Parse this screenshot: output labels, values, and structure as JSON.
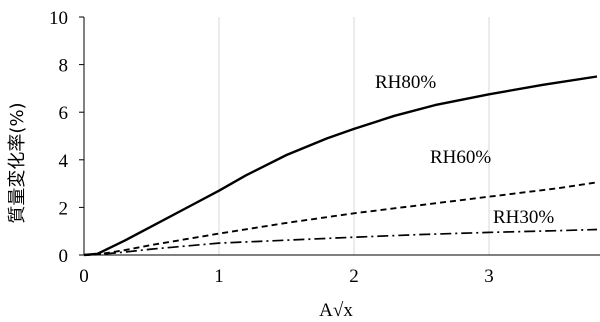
{
  "chart_data": {
    "type": "line",
    "xlabel": "A√x",
    "ylabel": "質量変化率(%)",
    "xlim": [
      0,
      3.8
    ],
    "ylim": [
      0,
      10
    ],
    "x_ticks": [
      "0",
      "1",
      "2",
      "3"
    ],
    "y_ticks": [
      "0",
      "2",
      "4",
      "6",
      "8",
      "10"
    ],
    "grid": "vertical",
    "series": [
      {
        "name": "RH80%",
        "style": "solid",
        "points": [
          [
            0,
            0
          ],
          [
            0.1,
            0.05
          ],
          [
            0.3,
            0.6
          ],
          [
            0.5,
            1.2
          ],
          [
            0.8,
            2.1
          ],
          [
            1.0,
            2.7
          ],
          [
            1.2,
            3.35
          ],
          [
            1.5,
            4.2
          ],
          [
            1.8,
            4.9
          ],
          [
            2.0,
            5.3
          ],
          [
            2.3,
            5.85
          ],
          [
            2.6,
            6.3
          ],
          [
            3.0,
            6.75
          ],
          [
            3.4,
            7.15
          ],
          [
            3.8,
            7.5
          ]
        ]
      },
      {
        "name": "RH60%",
        "style": "dashed",
        "points": [
          [
            0,
            0
          ],
          [
            0.1,
            0.02
          ],
          [
            0.3,
            0.2
          ],
          [
            0.5,
            0.42
          ],
          [
            1.0,
            0.9
          ],
          [
            1.5,
            1.35
          ],
          [
            2.0,
            1.75
          ],
          [
            2.5,
            2.1
          ],
          [
            3.0,
            2.45
          ],
          [
            3.5,
            2.8
          ],
          [
            3.8,
            3.05
          ]
        ]
      },
      {
        "name": "RH30%",
        "style": "dashdot",
        "points": [
          [
            0,
            0
          ],
          [
            0.1,
            0.02
          ],
          [
            0.3,
            0.12
          ],
          [
            0.5,
            0.25
          ],
          [
            1.0,
            0.5
          ],
          [
            1.5,
            0.62
          ],
          [
            2.0,
            0.75
          ],
          [
            2.5,
            0.86
          ],
          [
            3.0,
            0.95
          ],
          [
            3.5,
            1.02
          ],
          [
            3.8,
            1.07
          ]
        ]
      }
    ]
  }
}
